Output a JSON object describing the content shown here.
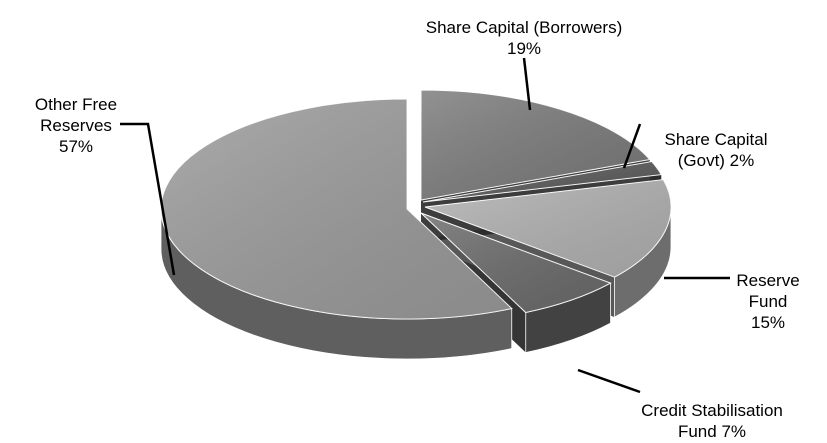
{
  "chart_data": {
    "type": "pie",
    "style": "3d-exploded",
    "title": "",
    "slices": [
      {
        "label_lines": [
          "Share Capital (Borrowers)",
          "19%"
        ],
        "name": "Share Capital (Borrowers)",
        "value": 19,
        "color": "#7a7a7a"
      },
      {
        "label_lines": [
          "Share Capital",
          "(Govt) 2%"
        ],
        "name": "Share Capital (Govt)",
        "value": 2,
        "color": "#5a5a5a"
      },
      {
        "label_lines": [
          "Reserve",
          "Fund",
          "15%"
        ],
        "name": "Reserve Fund",
        "value": 15,
        "color": "#b0b0b0"
      },
      {
        "label_lines": [
          "Credit Stabilisation",
          "Fund 7%"
        ],
        "name": "Credit Stabilisation Fund",
        "value": 7,
        "color": "#6a6a6a"
      },
      {
        "label_lines": [
          "Other Free",
          "Reserves",
          "57%"
        ],
        "name": "Other Free Reserves",
        "value": 57,
        "color": "#9a9a9a"
      }
    ]
  }
}
